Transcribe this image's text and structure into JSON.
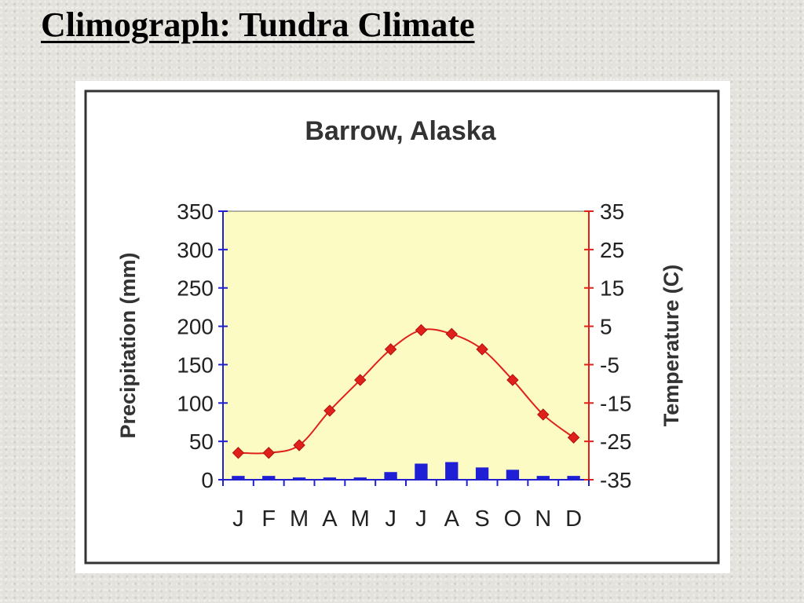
{
  "slide": {
    "title": "Climograph:  Tundra Climate"
  },
  "colors": {
    "plot_background": "#fcfbc4",
    "precipitation_bar": "#1f1fd6",
    "temperature_line": "#e0201a",
    "left_axis": "#2020cc",
    "right_axis": "#e0201a"
  },
  "chart_data": {
    "type": "bar",
    "title": "Barrow, Alaska",
    "categories": [
      "J",
      "F",
      "M",
      "A",
      "M",
      "J",
      "J",
      "A",
      "S",
      "O",
      "N",
      "D"
    ],
    "ylabel": "Precipitation (mm)",
    "y2label": "Temperature (C)",
    "ylim": [
      0,
      350
    ],
    "y2lim": [
      -35,
      35
    ],
    "yticks": [
      "350",
      "300",
      "250",
      "200",
      "150",
      "100",
      "50",
      "0"
    ],
    "y2ticks": [
      "35",
      "25",
      "15",
      "5",
      "-5",
      "-15",
      "-25",
      "-35"
    ],
    "grid": false,
    "series": [
      {
        "name": "Precipitation (mm)",
        "type": "bar",
        "axis": "left",
        "values": [
          5,
          5,
          3,
          3,
          3,
          10,
          21,
          23,
          16,
          13,
          5,
          5
        ]
      },
      {
        "name": "Temperature (C)",
        "type": "line",
        "axis": "right",
        "marker": "diamond",
        "values": [
          -28,
          -28,
          -26,
          -17,
          -9,
          -1,
          4,
          3,
          -1,
          -9,
          -18,
          -24
        ]
      }
    ]
  }
}
